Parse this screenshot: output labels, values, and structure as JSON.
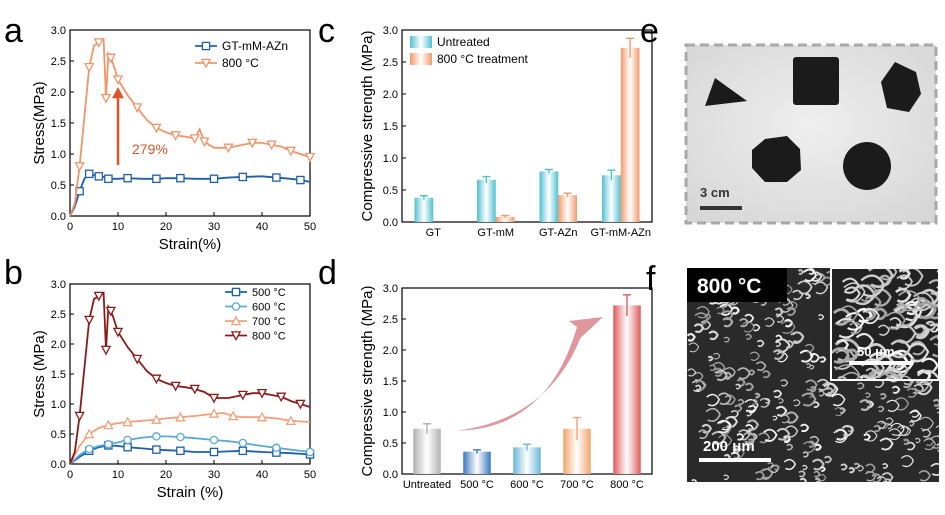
{
  "panels": {
    "a": "a",
    "b": "b",
    "c": "c",
    "d": "d",
    "e": "e",
    "f": "f"
  },
  "colors": {
    "blue": "#1f5fa8",
    "orange": "#f0956a",
    "lightblue": "#5aa9d6",
    "salmon": "#f4a07a",
    "darkred": "#8b1a1a",
    "annot": "#e0552b",
    "cyan": "#4fc0d0",
    "orange_bar": "#f29a6a"
  },
  "chart_data": [
    {
      "id": "a",
      "type": "line",
      "xlabel": "Strain(%)",
      "ylabel": "Stress(MPa)",
      "xlim": [
        0,
        50
      ],
      "ylim": [
        0,
        3.0
      ],
      "xticks": [
        "0",
        "10",
        "20",
        "30",
        "40",
        "50"
      ],
      "yticks": [
        "0.0",
        "0.5",
        "1.0",
        "1.5",
        "2.0",
        "2.5",
        "3.0"
      ],
      "annotation": "279%",
      "legend": "top-right",
      "series": [
        {
          "name": "GT-mM-AZn",
          "color": "#1f5fa8",
          "marker": "square",
          "x": [
            0,
            1,
            2,
            3,
            4,
            5,
            6,
            7,
            8,
            10,
            12,
            15,
            18,
            20,
            23,
            26,
            30,
            33,
            36,
            40,
            43,
            46,
            48,
            50
          ],
          "y": [
            0,
            0.15,
            0.4,
            0.6,
            0.68,
            0.66,
            0.64,
            0.63,
            0.6,
            0.6,
            0.61,
            0.6,
            0.6,
            0.61,
            0.61,
            0.6,
            0.6,
            0.62,
            0.63,
            0.64,
            0.62,
            0.6,
            0.58,
            0.55
          ]
        },
        {
          "name": "800 °C",
          "color": "#f0956a",
          "marker": "triangle-down",
          "x": [
            0,
            1,
            2,
            3,
            4,
            5,
            6,
            7,
            7.5,
            8,
            8.5,
            9,
            10,
            12,
            14,
            16,
            18,
            20,
            22,
            24,
            26,
            27,
            28,
            30,
            33,
            36,
            38,
            40,
            42,
            44,
            46,
            48,
            50
          ],
          "y": [
            0,
            0.2,
            0.8,
            1.6,
            2.4,
            2.75,
            2.8,
            2.85,
            1.9,
            2.62,
            2.55,
            2.45,
            2.2,
            1.95,
            1.75,
            1.55,
            1.42,
            1.35,
            1.3,
            1.28,
            1.25,
            1.4,
            1.2,
            1.1,
            1.1,
            1.15,
            1.18,
            1.18,
            1.15,
            1.12,
            1.05,
            1.0,
            0.95
          ]
        }
      ]
    },
    {
      "id": "b",
      "type": "line",
      "xlabel": "Strain (%)",
      "ylabel": "Stress (MPa)",
      "xlim": [
        0,
        50
      ],
      "ylim": [
        0,
        3.0
      ],
      "xticks": [
        "0",
        "10",
        "20",
        "30",
        "40",
        "50"
      ],
      "yticks": [
        "0.0",
        "0.5",
        "1.0",
        "1.5",
        "2.0",
        "2.5",
        "3.0"
      ],
      "legend": "top-right",
      "series": [
        {
          "name": "500 °C",
          "color": "#1f5fa8",
          "marker": "square",
          "x": [
            0,
            2,
            4,
            6,
            8,
            10,
            12,
            15,
            18,
            20,
            23,
            26,
            30,
            33,
            36,
            40,
            43,
            46,
            50
          ],
          "y": [
            0,
            0.12,
            0.22,
            0.28,
            0.31,
            0.3,
            0.28,
            0.26,
            0.24,
            0.23,
            0.22,
            0.2,
            0.2,
            0.21,
            0.22,
            0.2,
            0.19,
            0.18,
            0.16
          ]
        },
        {
          "name": "600 °C",
          "color": "#5aa9d6",
          "marker": "circle",
          "x": [
            0,
            2,
            4,
            6,
            8,
            10,
            12,
            15,
            18,
            20,
            23,
            26,
            30,
            33,
            36,
            40,
            43,
            46,
            50
          ],
          "y": [
            0,
            0.15,
            0.25,
            0.3,
            0.33,
            0.36,
            0.4,
            0.44,
            0.46,
            0.46,
            0.45,
            0.43,
            0.4,
            0.38,
            0.35,
            0.3,
            0.27,
            0.24,
            0.2
          ]
        },
        {
          "name": "700 °C",
          "color": "#f4a07a",
          "marker": "triangle-up",
          "x": [
            0,
            2,
            4,
            6,
            8,
            10,
            12,
            15,
            18,
            20,
            23,
            26,
            30,
            32,
            34,
            36,
            40,
            43,
            46,
            50
          ],
          "y": [
            0,
            0.3,
            0.5,
            0.6,
            0.65,
            0.68,
            0.7,
            0.72,
            0.74,
            0.76,
            0.78,
            0.8,
            0.84,
            0.85,
            0.8,
            0.78,
            0.78,
            0.76,
            0.72,
            0.7
          ]
        },
        {
          "name": "800 °C",
          "color": "#8b1a1a",
          "marker": "triangle-down",
          "x": [
            0,
            1,
            2,
            3,
            4,
            5,
            6,
            7,
            7.5,
            8,
            8.5,
            9,
            10,
            12,
            14,
            16,
            18,
            20,
            22,
            24,
            26,
            28,
            30,
            33,
            36,
            38,
            40,
            42,
            44,
            46,
            48,
            50
          ],
          "y": [
            0,
            0.2,
            0.8,
            1.6,
            2.4,
            2.75,
            2.8,
            2.85,
            1.9,
            2.62,
            2.55,
            2.45,
            2.2,
            1.95,
            1.75,
            1.55,
            1.42,
            1.35,
            1.3,
            1.28,
            1.25,
            1.2,
            1.1,
            1.1,
            1.15,
            1.18,
            1.18,
            1.15,
            1.12,
            1.05,
            1.0,
            0.95
          ]
        }
      ]
    },
    {
      "id": "c",
      "type": "bar",
      "ylabel": "Compressive strength (MPa)",
      "ylim": [
        0,
        3.0
      ],
      "yticks": [
        "0.0",
        "0.5",
        "1.0",
        "1.5",
        "2.0",
        "2.5",
        "3.0"
      ],
      "categories": [
        "GT",
        "GT-mM",
        "GT-AZn",
        "GT-mM-AZn"
      ],
      "legend": "top-left",
      "series": [
        {
          "name": "Untreated",
          "color": "#4fc0d0",
          "values": [
            0.38,
            0.66,
            0.79,
            0.73
          ],
          "errors": [
            0.03,
            0.05,
            0.03,
            0.08
          ]
        },
        {
          "name": "800 °C treatment",
          "color": "#f29a6a",
          "values": [
            null,
            0.08,
            0.42,
            2.72
          ],
          "errors": [
            null,
            0.02,
            0.03,
            0.15
          ]
        }
      ]
    },
    {
      "id": "d",
      "type": "bar",
      "ylabel": "Compressive strength (MPa)",
      "ylim": [
        0,
        3.0
      ],
      "yticks": [
        "0.0",
        "0.5",
        "1.0",
        "1.5",
        "2.0",
        "2.5",
        "3.0"
      ],
      "categories": [
        "Untreated",
        "500 °C",
        "600 °C",
        "700 °C",
        "800 °C"
      ],
      "values": [
        0.73,
        0.36,
        0.43,
        0.73,
        2.72
      ],
      "errors": [
        0.08,
        0.03,
        0.05,
        0.18,
        0.17
      ],
      "colors": [
        "#b0b0b0",
        "#3a78c0",
        "#6ab6dc",
        "#f2a36b",
        "#e05a5a"
      ]
    }
  ],
  "photo_e": {
    "scale_label": "3 cm"
  },
  "photo_f": {
    "title": "800 °C",
    "inset_scale": "50 μm",
    "main_scale": "200 μm"
  }
}
